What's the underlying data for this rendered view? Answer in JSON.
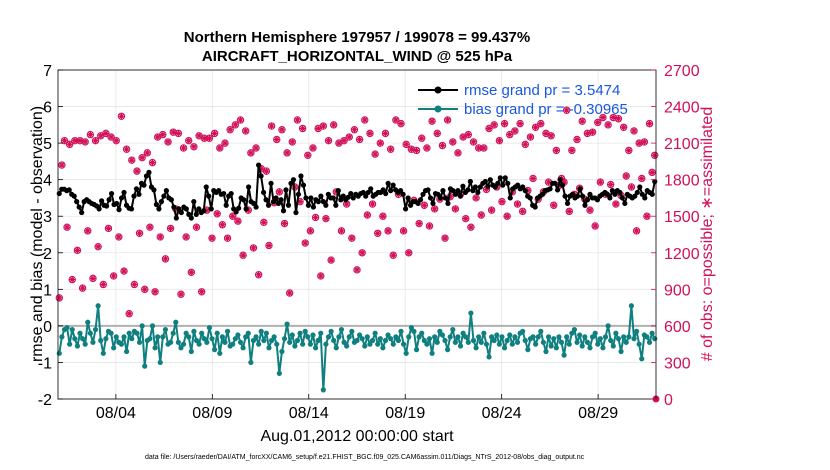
{
  "chart_data": {
    "type": "line",
    "title_line1": "Northern Hemisphere 197957 / 199078 = 99.437%",
    "title_line2": "AIRCRAFT_HORIZONTAL_WIND @ 525 hPa",
    "xlabel": "Aug.01,2012 00:00:00 start",
    "ylabel_left": "rmse and bias (model - observation)",
    "ylabel_right": "# of obs: o=possible; ∗=assimilated",
    "ylim_left": [
      -2,
      7
    ],
    "ylim_right": [
      0,
      2700
    ],
    "yticks_left": [
      "-2",
      "-1",
      "0",
      "1",
      "2",
      "3",
      "4",
      "5",
      "6",
      "7"
    ],
    "yticks_right": [
      "0",
      "300",
      "600",
      "900",
      "1200",
      "1500",
      "1800",
      "2100",
      "2400",
      "2700"
    ],
    "xlim_days": [
      1.0,
      32.0
    ],
    "xticks": [
      {
        "day": 4,
        "label": "08/04"
      },
      {
        "day": 9,
        "label": "08/09"
      },
      {
        "day": 14,
        "label": "08/14"
      },
      {
        "day": 19,
        "label": "08/19"
      },
      {
        "day": 24,
        "label": "08/24"
      },
      {
        "day": 29,
        "label": "08/29"
      }
    ],
    "legend": [
      {
        "name": "rmse grand pr = 3.5474",
        "color": "#000000"
      },
      {
        "name": "bias grand pr = -0.30965",
        "color": "#0f7f7f"
      }
    ],
    "footer": "data file: /Users/raeder/DAI/ATM_forcXX/CAM6_setup/f.e21.FHIST_BGC.f09_025.CAM6assim.011/Diags_NTrS_2012-08/obs_diag_output.nc",
    "colors": {
      "rmse": "#000000",
      "bias": "#0f7f7f",
      "obs": "#d1105a",
      "zero": "#b0b0b0",
      "legendText": "#1a57e0"
    },
    "series": {
      "rmse": [
        3.62,
        3.74,
        3.74,
        3.7,
        3.72,
        3.6,
        3.55,
        3.4,
        3.25,
        3.1,
        3.4,
        3.45,
        3.4,
        3.35,
        3.32,
        3.28,
        3.2,
        3.42,
        3.3,
        3.28,
        3.45,
        3.62,
        3.32,
        3.35,
        3.18,
        3.5,
        3.65,
        3.3,
        3.22,
        3.2,
        3.55,
        3.75,
        3.6,
        3.9,
        3.85,
        4.1,
        4.2,
        3.8,
        3.72,
        3.32,
        3.2,
        3.4,
        3.55,
        3.7,
        3.5,
        3.45,
        3.25,
        2.95,
        3.2,
        3.1,
        3.25,
        3.2,
        3.05,
        2.95,
        3.4,
        3.05,
        3.2,
        3.1,
        3.15,
        3.8,
        3.55,
        3.2,
        3.7,
        3.65,
        3.7,
        3.6,
        3.62,
        3.3,
        3.55,
        3.62,
        3.2,
        3.12,
        3.22,
        3.5,
        3.45,
        3.2,
        3.8,
        3.4,
        3.35,
        3.25,
        4.4,
        4.1,
        3.65,
        3.45,
        3.3,
        3.9,
        3.4,
        3.5,
        3.35,
        3.45,
        3.15,
        3.72,
        3.3,
        3.9,
        4.0,
        3.1,
        3.6,
        4.1,
        3.85,
        3.5,
        3.3,
        3.5,
        3.25,
        3.45,
        3.4,
        3.55,
        3.4,
        3.3,
        3.6,
        3.5,
        3.5,
        3.3,
        3.7,
        3.45,
        3.55,
        3.45,
        3.52,
        3.62,
        3.5,
        3.6,
        3.55,
        3.62,
        3.65,
        3.55,
        3.65,
        3.75,
        3.55,
        3.6,
        3.65,
        3.65,
        3.72,
        3.62,
        3.9,
        3.7,
        3.85,
        3.72,
        3.65,
        3.7,
        3.6,
        3.2,
        3.5,
        3.3,
        3.4,
        3.4,
        3.35,
        3.45,
        3.6,
        3.7,
        3.72,
        3.5,
        3.35,
        3.62,
        3.6,
        3.5,
        3.7,
        3.5,
        3.35,
        3.75,
        3.7,
        3.6,
        3.7,
        3.55,
        3.82,
        3.65,
        3.72,
        3.95,
        3.7,
        3.8,
        3.65,
        3.8,
        3.9,
        3.95,
        3.82,
        4.0,
        3.85,
        3.8,
        3.9,
        4.05,
        3.85,
        4.05,
        3.9,
        3.5,
        3.75,
        3.8,
        3.85,
        3.75,
        3.8,
        3.7,
        3.55,
        3.5,
        3.3,
        3.25,
        3.5,
        3.55,
        3.6,
        3.7,
        3.72,
        3.75,
        3.9,
        3.9,
        3.72,
        4.0,
        3.85,
        3.55,
        3.35,
        3.55,
        3.6,
        3.5,
        3.55,
        3.75,
        3.55,
        3.3,
        3.45,
        3.6,
        3.5,
        3.5,
        3.45,
        3.55,
        3.6,
        3.65,
        3.6,
        3.5,
        3.7,
        3.6,
        3.7,
        3.65,
        3.5,
        3.35,
        3.6,
        3.55,
        3.5,
        3.55,
        3.65,
        3.8,
        3.6,
        3.5,
        3.7,
        3.65,
        3.6,
        3.95
      ],
      "bias": [
        -0.75,
        -0.3,
        -0.1,
        -0.05,
        -0.5,
        -0.1,
        -0.35,
        -0.55,
        -0.2,
        -0.35,
        -0.5,
        0.1,
        -0.2,
        -0.45,
        -0.1,
        0.55,
        -0.4,
        -0.75,
        -0.35,
        -0.15,
        -0.2,
        -0.6,
        -0.3,
        -0.45,
        -0.5,
        -0.3,
        -0.7,
        -0.2,
        -0.35,
        -0.15,
        -0.2,
        -0.45,
        0.0,
        -1.1,
        -0.4,
        -0.35,
        0.0,
        -0.6,
        -0.3,
        -1.0,
        -0.3,
        -0.1,
        -0.5,
        -0.45,
        -0.2,
        0.1,
        -0.45,
        -0.6,
        -0.5,
        -0.2,
        -0.3,
        -0.7,
        -0.15,
        -0.4,
        -0.5,
        -0.2,
        -0.35,
        -0.45,
        -0.05,
        -0.35,
        -0.65,
        -0.2,
        -0.75,
        -0.3,
        -0.45,
        -0.15,
        -0.55,
        -0.5,
        -0.35,
        -0.25,
        -0.45,
        -0.6,
        -0.3,
        -0.2,
        -1.0,
        -0.4,
        -0.3,
        -0.5,
        -0.15,
        -0.4,
        -0.2,
        -0.6,
        -0.4,
        -0.3,
        -0.5,
        -1.3,
        -0.7,
        -0.35,
        0.05,
        -0.45,
        -0.25,
        -0.55,
        -0.4,
        -0.2,
        -0.5,
        -0.15,
        -0.3,
        -0.5,
        -0.25,
        -0.6,
        -0.4,
        -0.2,
        -1.75,
        -0.5,
        -0.3,
        -0.15,
        -0.4,
        -0.6,
        -0.3,
        -0.1,
        -0.45,
        -0.55,
        -0.3,
        -0.15,
        -0.45,
        -0.4,
        -0.25,
        -0.35,
        -0.55,
        -0.3,
        -0.5,
        -0.4,
        -0.2,
        -0.5,
        -0.35,
        -0.6,
        -0.4,
        -0.25,
        -0.35,
        -0.5,
        -0.3,
        -0.4,
        -0.15,
        -0.5,
        -0.75,
        -0.3,
        -0.05,
        -0.15,
        -0.65,
        -0.3,
        -0.2,
        -0.4,
        -0.5,
        -0.35,
        -0.75,
        -0.3,
        -0.45,
        -0.15,
        -0.25,
        -0.4,
        -0.65,
        -0.3,
        -0.1,
        -0.45,
        -0.3,
        -0.55,
        -0.2,
        -0.3,
        -0.45,
        0.35,
        -0.4,
        -0.6,
        -0.3,
        -0.45,
        -0.2,
        -0.5,
        -0.85,
        -0.3,
        -0.4,
        -0.25,
        -0.5,
        -0.3,
        -0.6,
        -0.4,
        -0.25,
        -0.5,
        -0.3,
        -0.45,
        -0.2,
        -0.15,
        -0.4,
        -0.65,
        -0.35,
        -0.3,
        -0.5,
        -0.3,
        -0.15,
        -0.45,
        -0.7,
        -0.3,
        -0.55,
        -0.35,
        -0.6,
        -0.3,
        -0.45,
        -0.8,
        -0.3,
        -0.5,
        -0.2,
        -0.1,
        -0.45,
        -0.25,
        -0.55,
        -0.3,
        -0.45,
        -0.6,
        -0.3,
        -0.2,
        -0.5,
        -0.35,
        -0.6,
        -0.3,
        0.0,
        -0.4,
        -0.55,
        -0.2,
        -0.35,
        -0.7,
        -0.3,
        -0.45,
        -0.3,
        0.55,
        -0.35,
        -0.15,
        -0.5,
        -0.9,
        -0.25,
        -0.3,
        -0.45,
        -0.2,
        -0.35
      ],
      "obs": [
        830,
        1920,
        2120,
        1410,
        2090,
        980,
        2120,
        1220,
        2120,
        910,
        2110,
        1380,
        2170,
        990,
        2120,
        1250,
        2160,
        940,
        2180,
        1400,
        2150,
        1010,
        2120,
        1330,
        2320,
        1050,
        2050,
        700,
        1960,
        940,
        1870,
        1360,
        1980,
        900,
        2020,
        1410,
        1940,
        880,
        2150,
        1330,
        2170,
        1150,
        2110,
        1400,
        2190,
        1560,
        2180,
        860,
        2060,
        1330,
        2120,
        1040,
        2070,
        1410,
        2160,
        880,
        2140,
        1550,
        2140,
        1320,
        2180,
        1520,
        2060,
        1430,
        2100,
        1320,
        2210,
        1500,
        2250,
        1460,
        2290,
        1180,
        2200,
        1550,
        2020,
        1240,
        2060,
        1020,
        1890,
        1450,
        1870,
        1260,
        2240,
        1610,
        2130,
        1700,
        2210,
        1440,
        2020,
        870,
        2110,
        1740,
        2290,
        1620,
        2220,
        1280,
        2000,
        1380,
        2060,
        1490,
        2220,
        1010,
        2240,
        1480,
        2120,
        1140,
        2250,
        1700,
        2100,
        1380,
        2120,
        1600,
        2150,
        1320,
        2210,
        1060,
        2130,
        1200,
        2290,
        1510,
        2180,
        1600,
        2010,
        1360,
        2100,
        1500,
        2180,
        1380,
        2050,
        1180,
        2290,
        1680,
        2260,
        1380,
        2090,
        1200,
        2050,
        1630,
        2040,
        1440,
        2140,
        1590,
        2060,
        1420,
        2280,
        1560,
        2180,
        1640,
        2080,
        1320,
        2290,
        1660,
        2110,
        1560,
        2020,
        1680,
        2150,
        1480,
        2170,
        1410,
        2110,
        1650,
        2060,
        1510,
        2060,
        1720,
        2220,
        1550,
        2250,
        1740,
        2120,
        1620,
        2260,
        1500,
        2170,
        1700,
        2200,
        1600,
        2260,
        1540,
        2090,
        1710,
        2150,
        1810,
        2230,
        1640,
        2260,
        1700,
        2180,
        1780,
        2160,
        1590,
        2040,
        1750,
        1810,
        1780,
        2370,
        1540,
        2040,
        1680,
        2130,
        1730,
        2280,
        1640,
        2180,
        1550,
        2190,
        1420,
        2270,
        1780,
        2310,
        1680,
        2250,
        1760,
        2310,
        1600,
        2300,
        1670,
        2230,
        1830,
        2040,
        1740,
        2200,
        1380,
        2100,
        1810,
        2110,
        1500,
        2260,
        1860,
        2000
      ]
    }
  }
}
